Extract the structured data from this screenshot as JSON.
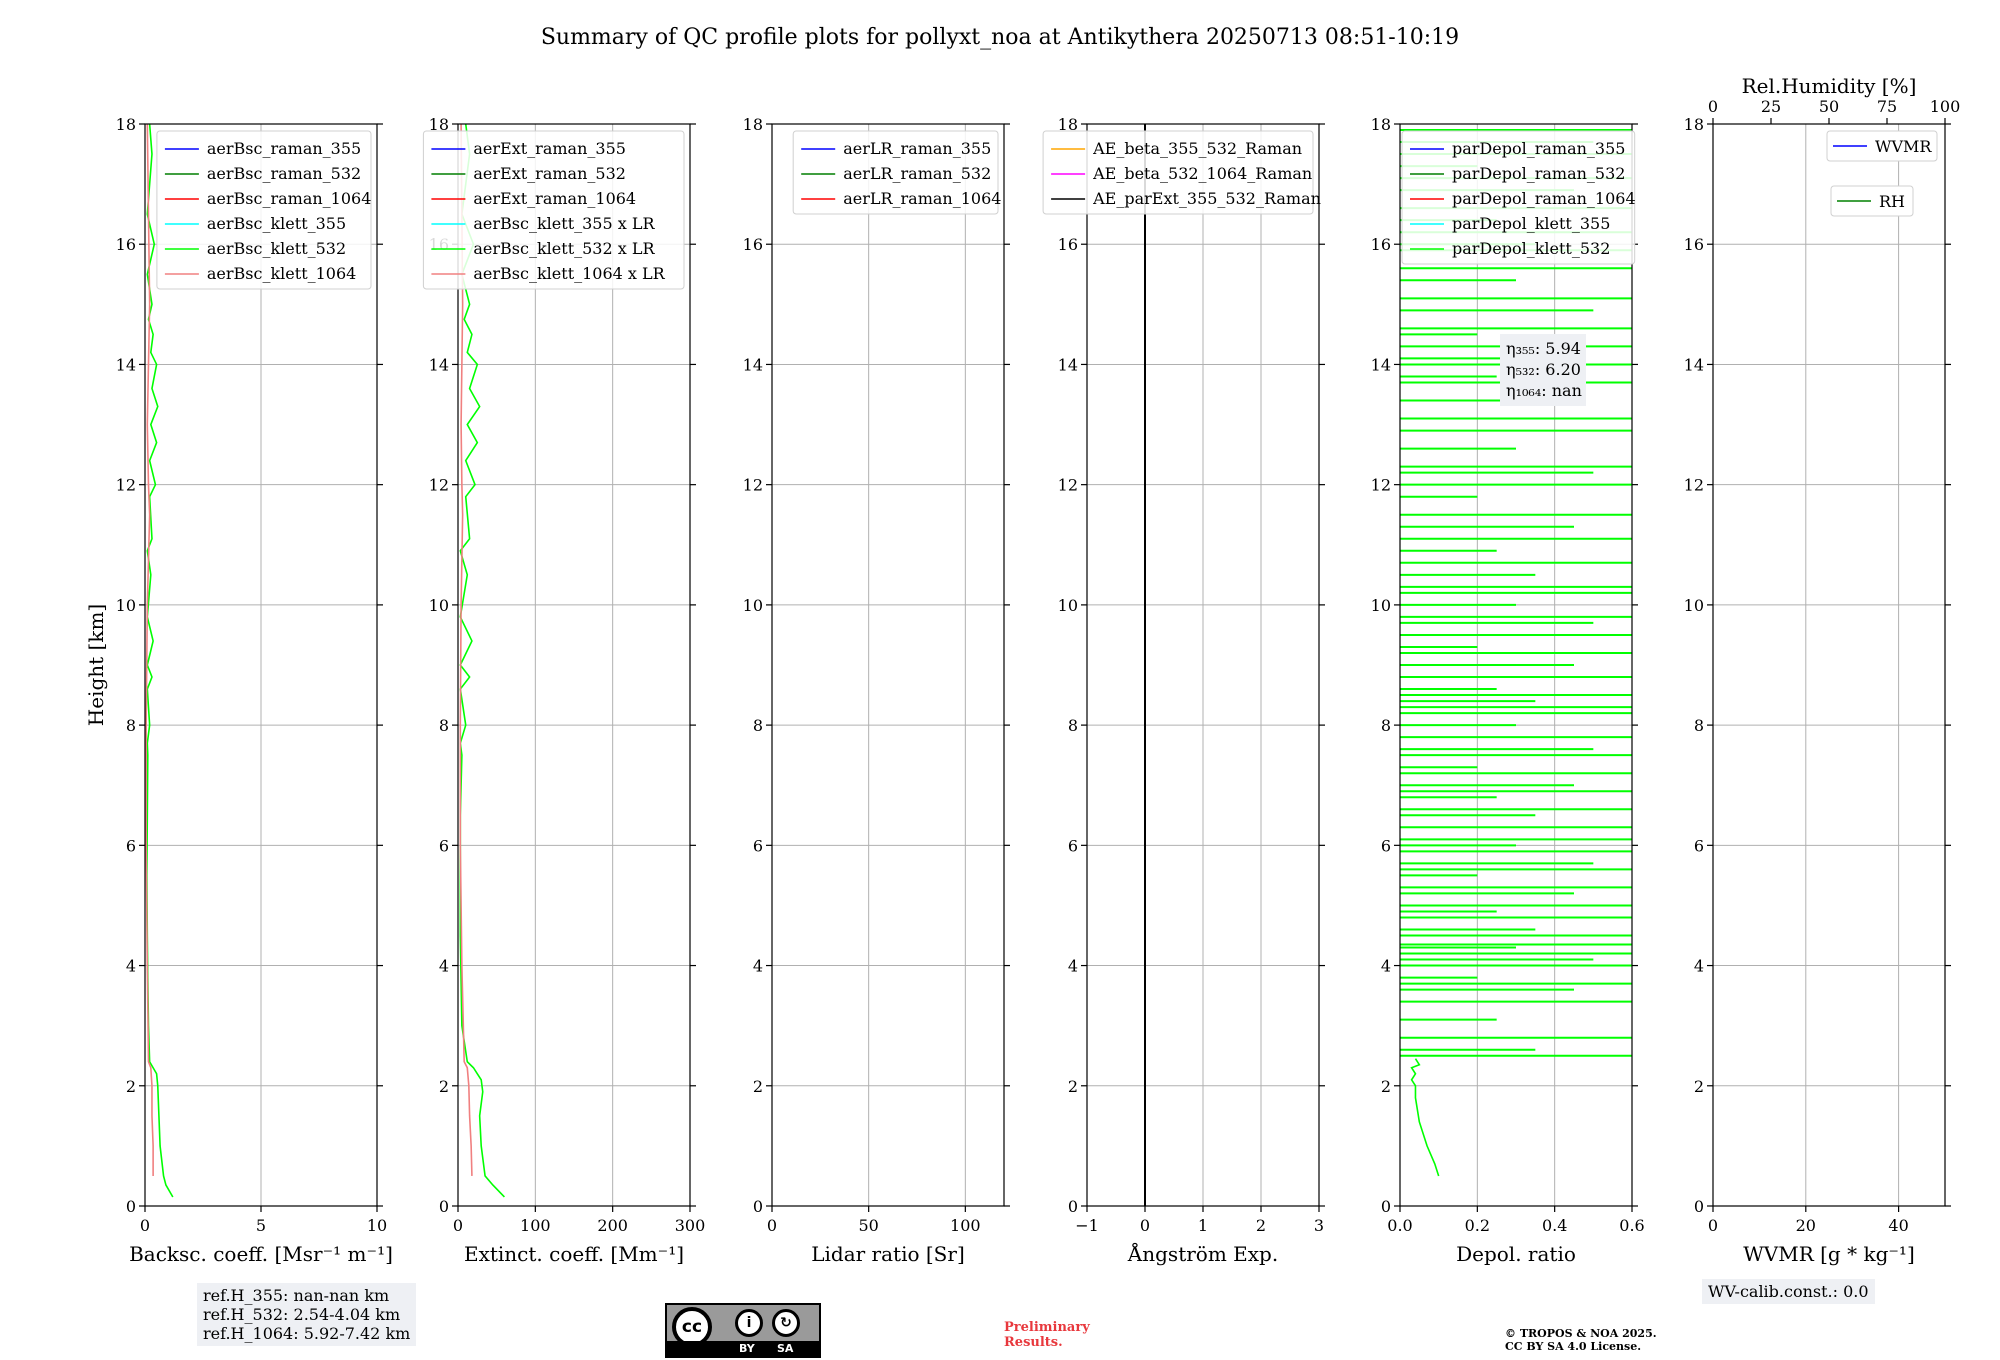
{
  "title": "Summary of QC profile plots for pollyxt_noa at Antikythera 20250713 08:51-10:19",
  "colors": {
    "blue": "#0000ff",
    "darkgreen": "#007f00",
    "red": "#ff0000",
    "cyan": "#00ffff",
    "lime": "#00ff00",
    "salmon": "#f08080",
    "orange": "#ffa500",
    "magenta": "#ff00ff",
    "black": "#000000",
    "green": "#008000",
    "grid": "#b0b0b0"
  },
  "chart_data": [
    {
      "type": "line",
      "ylabel": "Height [km]",
      "xlabel": "Backsc. coeff. [Msr⁻¹ m⁻¹]",
      "xlim": [
        0,
        10
      ],
      "ylim": [
        0,
        18
      ],
      "xticks": [
        "0",
        "5",
        "10"
      ],
      "xtick_values": [
        0,
        5,
        10
      ],
      "yticks": [
        "0",
        "2",
        "4",
        "6",
        "8",
        "10",
        "12",
        "14",
        "16",
        "18"
      ],
      "legend_placement": "top-right",
      "series": [
        {
          "name": "aerBsc_raman_355",
          "color": "#0000ff"
        },
        {
          "name": "aerBsc_raman_532",
          "color": "#007f00"
        },
        {
          "name": "aerBsc_raman_1064",
          "color": "#ff0000"
        },
        {
          "name": "aerBsc_klett_355",
          "color": "#00ffff"
        },
        {
          "name": "aerBsc_klett_532",
          "color": "#00ff00",
          "x": [
            1.2,
            0.9,
            0.8,
            0.65,
            0.6,
            0.55,
            0.5,
            0.35,
            0.2,
            0.15,
            0.12,
            0.1,
            0.08,
            0.1,
            0.12,
            0.1,
            0.2,
            0.1,
            0.3,
            0.1,
            0.35,
            0.1,
            0.25,
            0.1,
            0.3,
            0.2,
            0.45,
            0.2,
            0.5,
            0.25,
            0.55,
            0.3,
            0.5,
            0.25,
            0.35,
            0.15,
            0.3,
            0.1,
            0.4,
            0.1,
            0.3,
            0.2
          ],
          "y": [
            0.15,
            0.35,
            0.5,
            1.0,
            1.5,
            2.0,
            2.2,
            2.3,
            2.4,
            3.0,
            3.8,
            4.5,
            5.5,
            6.5,
            7.5,
            7.7,
            8.0,
            8.6,
            8.8,
            9.0,
            9.4,
            9.8,
            10.5,
            10.9,
            11.1,
            11.8,
            12.0,
            12.4,
            12.7,
            13.0,
            13.3,
            13.6,
            14.0,
            14.2,
            14.5,
            14.75,
            15.0,
            15.5,
            16.0,
            16.5,
            17.5,
            18.0
          ]
        },
        {
          "name": "aerBsc_klett_1064",
          "color": "#f08080",
          "x": [
            0.35,
            0.35,
            0.3,
            0.3,
            0.25,
            0.15,
            0.1,
            0.05,
            0.05,
            0.1,
            0.2,
            0.15,
            0.1,
            0.15,
            0.2,
            0.15,
            0.1
          ],
          "y": [
            0.5,
            1.0,
            1.5,
            2.0,
            2.3,
            2.4,
            4.0,
            6.0,
            8.0,
            10.0,
            11.5,
            12.0,
            13.0,
            14.0,
            15.0,
            16.5,
            18.0
          ]
        }
      ],
      "annotation": [
        "ref.H_355: nan-nan km",
        "ref.H_532: 2.54-4.04 km",
        "ref.H_1064: 5.92-7.42 km"
      ]
    },
    {
      "type": "line",
      "xlabel": "Extinct. coeff. [Mm⁻¹]",
      "xlim": [
        0,
        300
      ],
      "ylim": [
        0,
        18
      ],
      "xticks": [
        "0",
        "100",
        "200",
        "300"
      ],
      "xtick_values": [
        0,
        100,
        200,
        300
      ],
      "yticks": [
        "0",
        "2",
        "4",
        "6",
        "8",
        "10",
        "12",
        "14",
        "16",
        "18"
      ],
      "legend_placement": "top-right",
      "series": [
        {
          "name": "aerExt_raman_355",
          "color": "#0000ff"
        },
        {
          "name": "aerExt_raman_532",
          "color": "#007f00"
        },
        {
          "name": "aerExt_raman_1064",
          "color": "#ff0000"
        },
        {
          "name": "aerBsc_klett_355 x LR",
          "color": "#00ffff"
        },
        {
          "name": "aerBsc_klett_532 x LR",
          "color": "#00ff00",
          "x": [
            60,
            45,
            35,
            30,
            28,
            32,
            30,
            25,
            20,
            12,
            5,
            3,
            3,
            3,
            5,
            3,
            10,
            3,
            15,
            3,
            18,
            3,
            12,
            3,
            15,
            10,
            22,
            10,
            25,
            12,
            28,
            15,
            25,
            12,
            18,
            8,
            15,
            5,
            20,
            5,
            15,
            10
          ],
          "y": [
            0.15,
            0.35,
            0.5,
            1.0,
            1.5,
            1.9,
            2.1,
            2.2,
            2.3,
            2.4,
            3.0,
            4.5,
            5.5,
            6.5,
            7.5,
            7.7,
            8.0,
            8.6,
            8.8,
            9.0,
            9.4,
            9.8,
            10.5,
            10.9,
            11.1,
            11.8,
            12.0,
            12.4,
            12.7,
            13.0,
            13.3,
            13.6,
            14.0,
            14.2,
            14.5,
            14.75,
            15.0,
            15.5,
            16.0,
            16.5,
            17.5,
            18.0
          ]
        },
        {
          "name": "aerBsc_klett_1064 x LR",
          "color": "#f08080",
          "x": [
            18,
            17,
            15,
            14,
            12,
            8,
            5,
            3,
            3,
            4,
            6,
            5,
            4,
            5,
            6,
            5,
            4
          ],
          "y": [
            0.5,
            1.0,
            1.5,
            2.0,
            2.3,
            2.4,
            4.0,
            6.0,
            8.0,
            10.0,
            11.5,
            12.0,
            13.0,
            14.0,
            15.0,
            16.5,
            18.0
          ]
        }
      ]
    },
    {
      "type": "line",
      "xlabel": "Lidar ratio [Sr]",
      "xlim": [
        0,
        120
      ],
      "ylim": [
        0,
        18
      ],
      "xticks": [
        "0",
        "50",
        "100"
      ],
      "xtick_values": [
        0,
        50,
        100
      ],
      "yticks": [
        "0",
        "2",
        "4",
        "6",
        "8",
        "10",
        "12",
        "14",
        "16",
        "18"
      ],
      "legend_placement": "top-right",
      "series": [
        {
          "name": "aerLR_raman_355",
          "color": "#0000ff"
        },
        {
          "name": "aerLR_raman_532",
          "color": "#007f00"
        },
        {
          "name": "aerLR_raman_1064",
          "color": "#ff0000"
        }
      ]
    },
    {
      "type": "line",
      "xlabel": "Ångström Exp.",
      "xlim": [
        -1,
        3
      ],
      "ylim": [
        0,
        18
      ],
      "xticks": [
        "−1",
        "0",
        "1",
        "2",
        "3"
      ],
      "xtick_values": [
        -1,
        0,
        1,
        2,
        3
      ],
      "yticks": [
        "0",
        "2",
        "4",
        "6",
        "8",
        "10",
        "12",
        "14",
        "16",
        "18"
      ],
      "legend_placement": "top-right",
      "series": [
        {
          "name": "AE_beta_355_532_Raman",
          "color": "#ffa500"
        },
        {
          "name": "AE_beta_532_1064_Raman",
          "color": "#ff00ff"
        },
        {
          "name": "AE_parExt_355_532_Raman",
          "color": "#000000",
          "x": [
            0,
            0
          ],
          "y": [
            0,
            18
          ]
        }
      ]
    },
    {
      "type": "line",
      "xlabel": "Depol. ratio",
      "xlim": [
        0,
        0.6
      ],
      "ylim": [
        0,
        18
      ],
      "xticks": [
        "0.0",
        "0.2",
        "0.4",
        "0.6"
      ],
      "xtick_values": [
        0,
        0.2,
        0.4,
        0.6
      ],
      "yticks": [
        "0",
        "2",
        "4",
        "6",
        "8",
        "10",
        "12",
        "14",
        "16",
        "18"
      ],
      "legend_placement": "top-left",
      "series": [
        {
          "name": "parDepol_raman_355",
          "color": "#0000ff"
        },
        {
          "name": "parDepol_raman_532",
          "color": "#007f00"
        },
        {
          "name": "parDepol_raman_1064",
          "color": "#ff0000"
        },
        {
          "name": "parDepol_klett_355",
          "color": "#00ffff"
        },
        {
          "name": "parDepol_klett_532",
          "color": "#00ff00",
          "x": [
            0.1,
            0.09,
            0.07,
            0.05,
            0.04,
            0.04,
            0.03,
            0.04,
            0.03,
            0.05,
            0.04
          ],
          "y": [
            0.5,
            0.7,
            1.0,
            1.4,
            1.8,
            2.0,
            2.1,
            2.2,
            2.3,
            2.35,
            2.45
          ]
        }
      ],
      "annotation": [
        "η₃₅₅: 5.94",
        "η₅₃₂: 6.20",
        "η₁₀₆₄: nan"
      ]
    },
    {
      "type": "line",
      "xlabel": "WVMR [g * kg⁻¹]",
      "x2label": "Rel.Humidity [%]",
      "xlim": [
        0,
        50
      ],
      "x2lim": [
        0,
        100
      ],
      "ylim": [
        0,
        18
      ],
      "xticks": [
        "0",
        "20",
        "40"
      ],
      "xtick_values": [
        0,
        20,
        40
      ],
      "x2ticks": [
        "0",
        "25",
        "50",
        "75",
        "100"
      ],
      "x2tick_values": [
        0,
        25,
        50,
        75,
        100
      ],
      "yticks": [
        "0",
        "2",
        "4",
        "6",
        "8",
        "10",
        "12",
        "14",
        "16",
        "18"
      ],
      "legend_placement": "top-right",
      "series": [
        {
          "name": "WVMR",
          "color": "#0000ff"
        },
        {
          "name": "RH",
          "color": "#008000"
        }
      ],
      "annotation": [
        "WV-calib.const.: 0.0"
      ]
    }
  ],
  "footer": {
    "preliminary": [
      "Preliminary",
      "Results."
    ],
    "copyright": [
      "© TROPOS & NOA 2025.",
      "CC BY SA 4.0 License."
    ],
    "license_badge": {
      "main": "cc",
      "by": "BY",
      "sa": "SA"
    }
  }
}
